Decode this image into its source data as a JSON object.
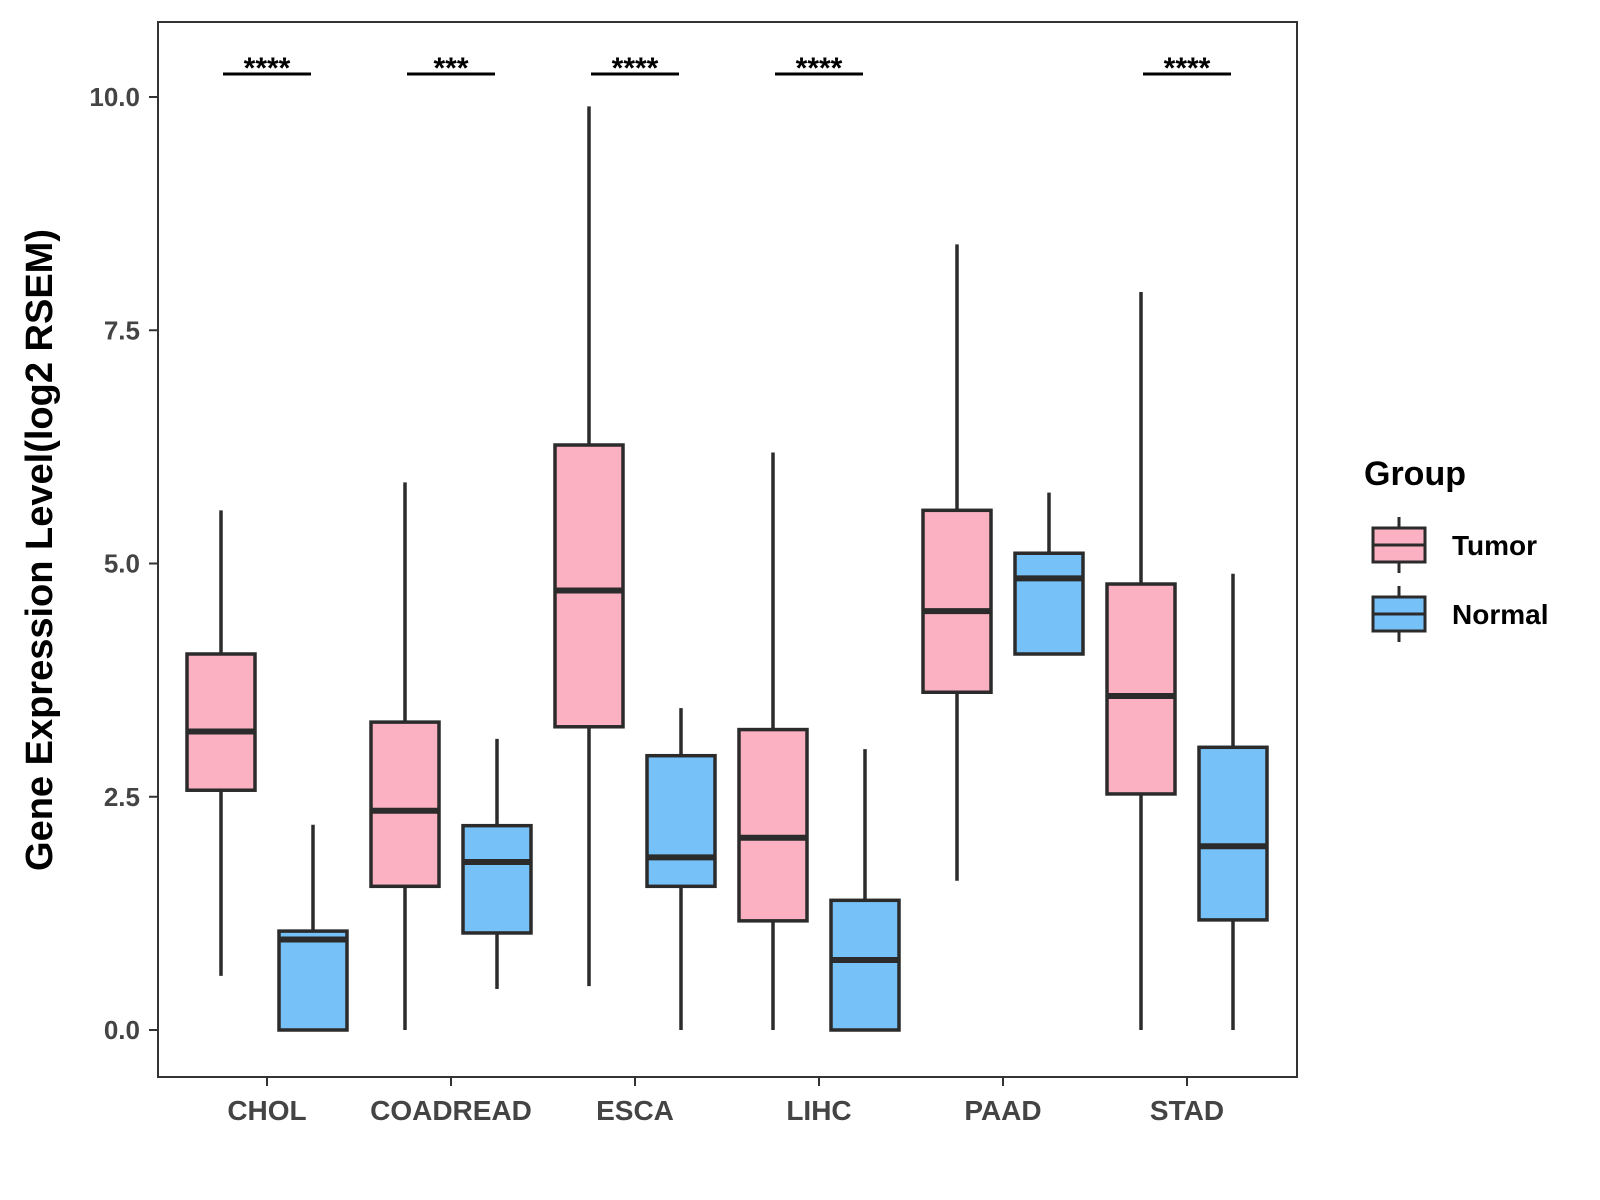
{
  "chart_data": {
    "type": "boxplot",
    "title": "",
    "xlabel": "",
    "ylabel": "Gene Expression Level(log2 RSEM)",
    "ylim": [
      -0.5,
      10.8
    ],
    "yticks": [
      0.0,
      2.5,
      5.0,
      7.5,
      10.0
    ],
    "ytick_labels": [
      "0.0",
      "2.5",
      "5.0",
      "7.5",
      "10.0"
    ],
    "categories": [
      "CHOL",
      "COADREAD",
      "ESCA",
      "LIHC",
      "PAAD",
      "STAD"
    ],
    "series": [
      {
        "name": "Tumor",
        "color": "#FBB1C2",
        "boxes": [
          {
            "whisker_low": 0.58,
            "q1": 2.57,
            "median": 3.2,
            "q3": 4.03,
            "whisker_high": 5.57
          },
          {
            "whisker_low": 0.0,
            "q1": 1.54,
            "median": 2.35,
            "q3": 3.3,
            "whisker_high": 5.87
          },
          {
            "whisker_low": 0.47,
            "q1": 3.25,
            "median": 4.71,
            "q3": 6.27,
            "whisker_high": 9.9
          },
          {
            "whisker_low": 0.0,
            "q1": 1.17,
            "median": 2.06,
            "q3": 3.22,
            "whisker_high": 6.19
          },
          {
            "whisker_low": 1.6,
            "q1": 3.62,
            "median": 4.49,
            "q3": 5.57,
            "whisker_high": 8.42
          },
          {
            "whisker_low": 0.0,
            "q1": 2.53,
            "median": 3.58,
            "q3": 4.78,
            "whisker_high": 7.91
          }
        ]
      },
      {
        "name": "Normal",
        "color": "#76C1F7",
        "boxes": [
          {
            "whisker_low": 0.0,
            "q1": 0.0,
            "median": 0.97,
            "q3": 1.06,
            "whisker_high": 2.2
          },
          {
            "whisker_low": 0.44,
            "q1": 1.04,
            "median": 1.8,
            "q3": 2.19,
            "whisker_high": 3.12
          },
          {
            "whisker_low": 0.0,
            "q1": 1.54,
            "median": 1.85,
            "q3": 2.94,
            "whisker_high": 3.45
          },
          {
            "whisker_low": 0.0,
            "q1": 0.0,
            "median": 0.75,
            "q3": 1.39,
            "whisker_high": 3.01
          },
          {
            "whisker_low": 4.03,
            "q1": 4.03,
            "median": 4.84,
            "q3": 5.11,
            "whisker_high": 5.76
          },
          {
            "whisker_low": 0.0,
            "q1": 1.18,
            "median": 1.97,
            "q3": 3.03,
            "whisker_high": 4.89
          }
        ]
      }
    ],
    "significance": [
      "****",
      "***",
      "****",
      "****",
      "",
      "****"
    ],
    "legend": {
      "title": "Group",
      "position": "right",
      "entries": [
        "Tumor",
        "Normal"
      ]
    }
  }
}
